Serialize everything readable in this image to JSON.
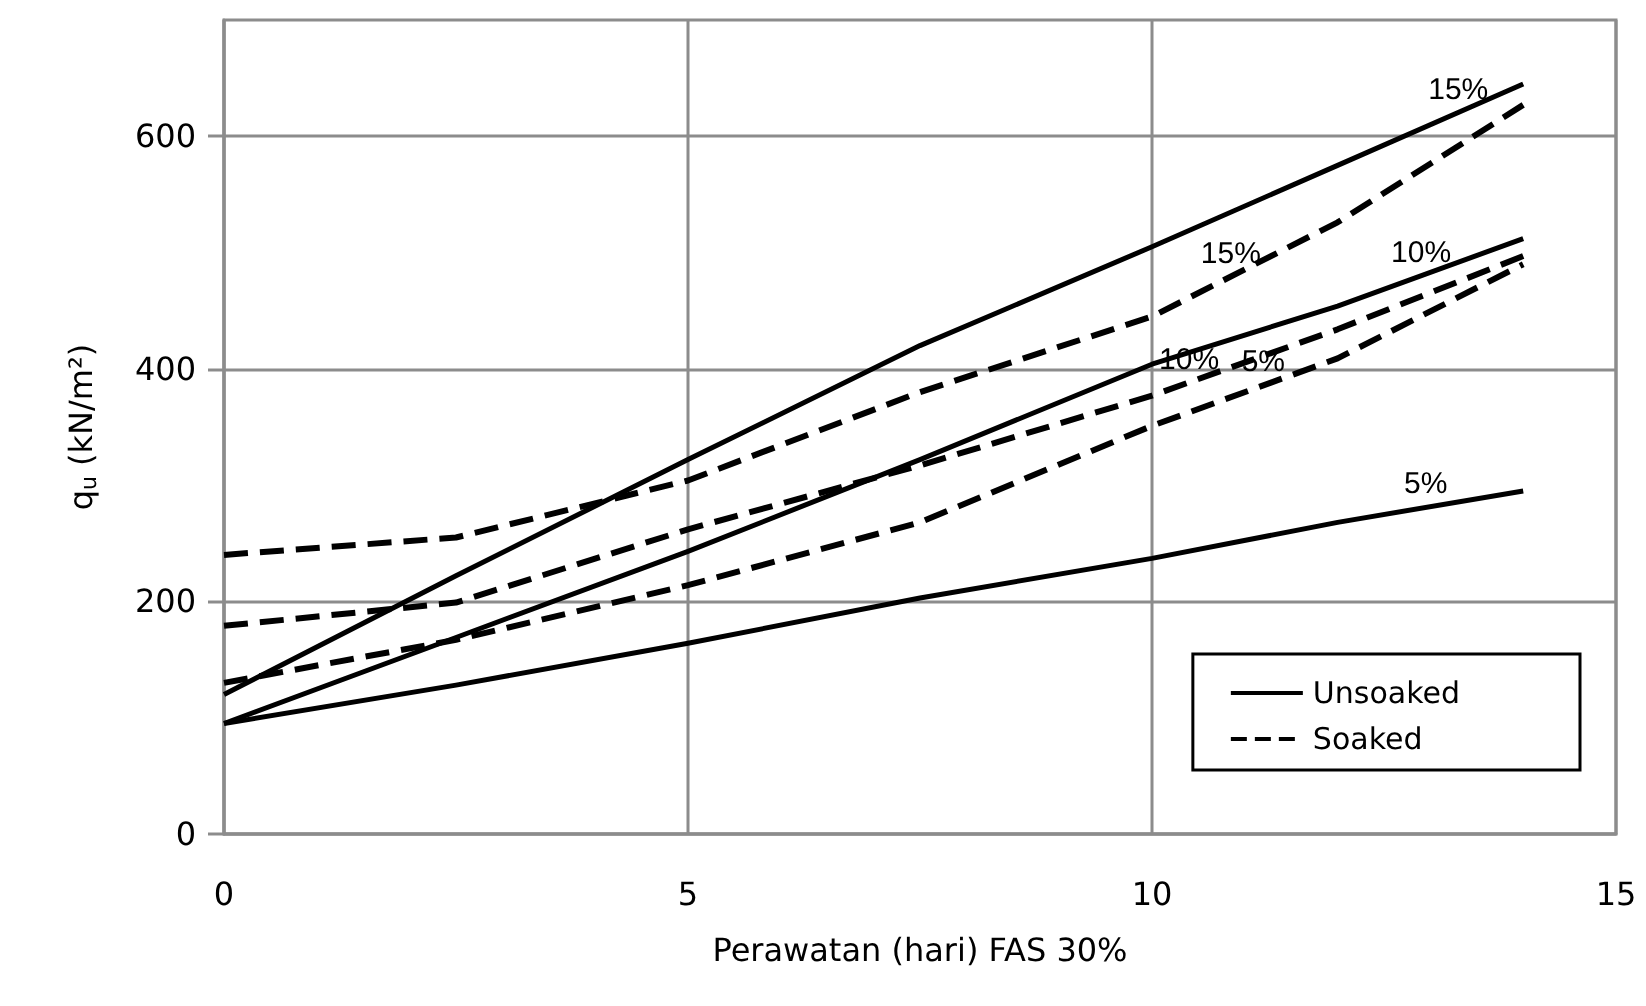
{
  "chart_data": {
    "type": "line",
    "xlabel": "Perawatan (hari) FAS 30%",
    "ylabel": "q$_{u}$ (kN/m²)",
    "xlim": [
      0,
      15
    ],
    "xticks": [
      0,
      5,
      10,
      15
    ],
    "ylim": [
      0,
      700
    ],
    "yticks": [
      0,
      200,
      400,
      600
    ],
    "x": [
      0,
      2.5,
      5,
      7.5,
      10,
      12,
      14
    ],
    "series": [
      {
        "name": "Unsoaked",
        "color": "#000000",
        "line_style": "solid",
        "values": [
          120,
          222,
          322,
          420,
          505,
          575,
          645
        ]
      },
      {
        "color": "#000000",
        "line_style": "solid",
        "values": [
          95,
          169,
          243,
          322,
          404,
          454,
          512
        ]
      },
      {
        "color": "#000000",
        "line_style": "solid",
        "values": [
          95,
          128,
          164,
          203,
          237,
          268,
          295
        ]
      },
      {
        "name": "Soaked",
        "color": "#000000",
        "line_style": "dashed",
        "values": [
          240,
          255,
          304,
          380,
          445,
          526,
          627
        ]
      },
      {
        "color": "#000000",
        "line_style": "dashed",
        "values": [
          179,
          199,
          262,
          317,
          377,
          434,
          497
        ]
      },
      {
        "color": "#000000",
        "line_style": "dashed",
        "values": [
          130,
          167,
          214,
          268,
          351,
          409,
          490
        ]
      }
    ],
    "annotations": [
      {
        "text": "15%",
        "x": 13.3,
        "y": 620
      },
      {
        "text": "15%",
        "x": 10.85,
        "y": 479
      },
      {
        "text": "10%",
        "x": 12.9,
        "y": 480
      },
      {
        "text": "10%",
        "x": 10.4,
        "y": 388
      },
      {
        "text": "5%",
        "x": 11.2,
        "y": 386
      },
      {
        "text": "5%",
        "x": 12.95,
        "y": 281
      }
    ],
    "grid": true,
    "legend": "bottom right",
    "marker": "none"
  }
}
